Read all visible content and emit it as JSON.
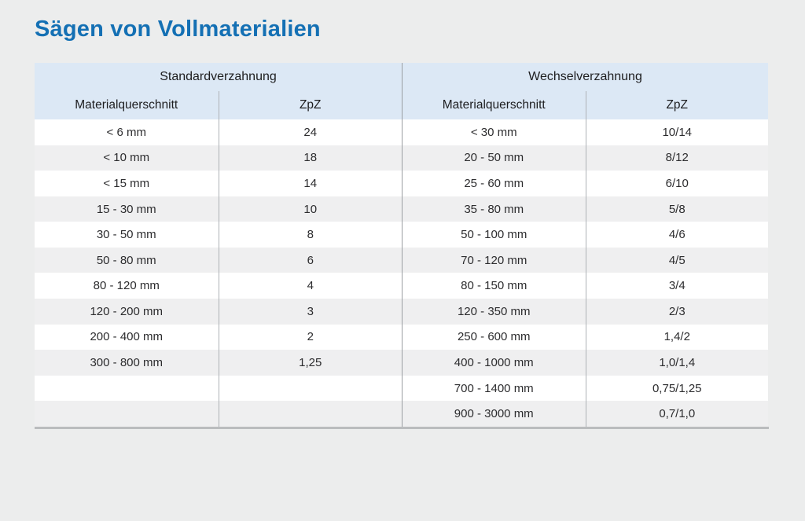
{
  "page": {
    "title": "Sägen von Vollmaterialien"
  },
  "colors": {
    "title_blue": "#1470b4",
    "header_blue": "#dce8f5",
    "row_white": "#ffffff",
    "row_gray": "#efeff0",
    "page_background": "#eceded",
    "divider_gray": "#999da1",
    "bottom_border": "#babcbe"
  },
  "table": {
    "sections": [
      {
        "title": "Standardverzahnung",
        "columns": [
          "Materialquerschnitt",
          "ZpZ"
        ],
        "rows": [
          [
            "< 6 mm",
            "24"
          ],
          [
            "< 10 mm",
            "18"
          ],
          [
            "< 15 mm",
            "14"
          ],
          [
            "15 - 30 mm",
            "10"
          ],
          [
            "30 - 50 mm",
            "8"
          ],
          [
            "50 - 80 mm",
            "6"
          ],
          [
            "80 - 120 mm",
            "4"
          ],
          [
            "120 - 200 mm",
            "3"
          ],
          [
            "200 - 400 mm",
            "2"
          ],
          [
            "300 - 800 mm",
            "1,25"
          ],
          [
            "",
            ""
          ],
          [
            "",
            ""
          ]
        ]
      },
      {
        "title": "Wechselverzahnung",
        "columns": [
          "Materialquerschnitt",
          "ZpZ"
        ],
        "rows": [
          [
            "< 30 mm",
            "10/14"
          ],
          [
            "20 - 50 mm",
            "8/12"
          ],
          [
            "25 - 60 mm",
            "6/10"
          ],
          [
            "35 - 80 mm",
            "5/8"
          ],
          [
            "50 - 100 mm",
            "4/6"
          ],
          [
            "70 - 120 mm",
            "4/5"
          ],
          [
            "80 - 150 mm",
            "3/4"
          ],
          [
            "120 - 350 mm",
            "2/3"
          ],
          [
            "250 - 600 mm",
            "1,4/2"
          ],
          [
            "400 - 1000 mm",
            "1,0/1,4"
          ],
          [
            "700 - 1400 mm",
            "0,75/1,25"
          ],
          [
            "900 - 3000 mm",
            "0,7/1,0"
          ]
        ]
      }
    ]
  }
}
